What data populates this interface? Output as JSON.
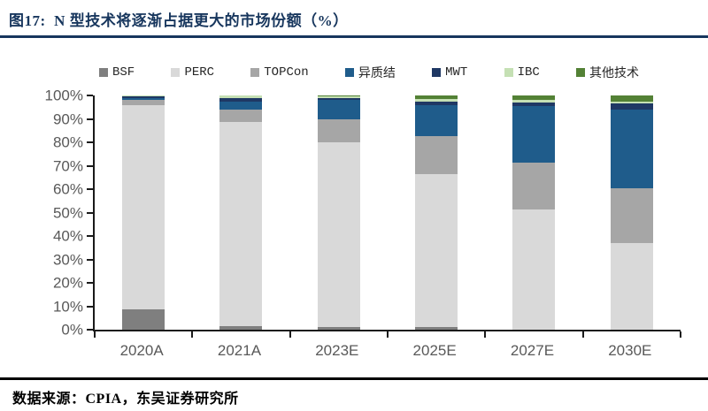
{
  "figure": {
    "title": "图17:  N 型技术将逐渐占据更大的市场份额（%）",
    "source": "数据来源：CPIA，东吴证券研究所",
    "title_color": "#17365D",
    "axis_text_color": "#595959",
    "axis_line_color": "#1a1a1a"
  },
  "chart_data": {
    "type": "bar",
    "stacked": true,
    "title": "N 型技术将逐渐占据更大的市场份额（%）",
    "xlabel": "",
    "ylabel": "",
    "ylim": [
      0,
      100
    ],
    "ytick_step": 10,
    "ytick_suffix": "%",
    "grid": false,
    "legend_position": "top",
    "categories": [
      "2020A",
      "2021A",
      "2023E",
      "2025E",
      "2027E",
      "2030E"
    ],
    "series": [
      {
        "name": "BSF",
        "color": "#7F7F7F",
        "values": [
          8.5,
          1.5,
          1,
          1,
          0,
          0
        ]
      },
      {
        "name": "PERC",
        "color": "#D9D9D9",
        "values": [
          87.5,
          87,
          79,
          65.5,
          51.5,
          37
        ]
      },
      {
        "name": "TOPCon",
        "color": "#A6A6A6",
        "values": [
          2,
          5.5,
          10,
          16,
          20,
          23.5
        ]
      },
      {
        "name": "异质结",
        "color": "#1F5C8B",
        "values": [
          1,
          3.5,
          8,
          13.5,
          24,
          33.5
        ]
      },
      {
        "name": "MWT",
        "color": "#1F3864",
        "values": [
          0.5,
          1.5,
          1,
          1.5,
          1.5,
          2.5
        ]
      },
      {
        "name": "IBC",
        "color": "#C5E0B4",
        "values": [
          0.5,
          1,
          0.5,
          1,
          1,
          1
        ]
      },
      {
        "name": "其他技术",
        "color": "#538135",
        "values": [
          0,
          0,
          0.5,
          1.5,
          2,
          2.5
        ]
      }
    ]
  }
}
